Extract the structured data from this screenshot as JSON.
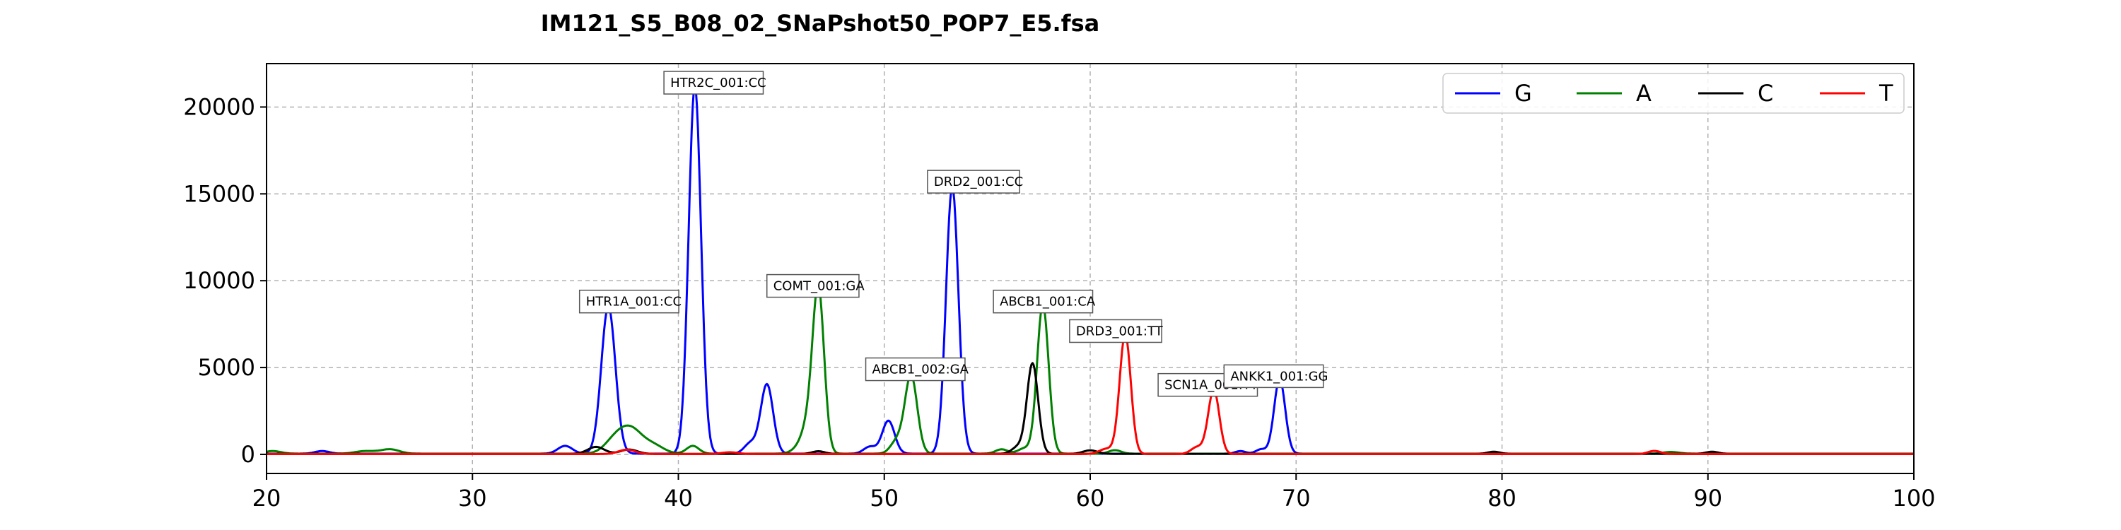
{
  "chart_data": {
    "type": "line",
    "title": "IM121_S5_B08_02_SNaPshot50_POP7_E5.fsa",
    "xlabel": "",
    "ylabel": "",
    "xlim": [
      20,
      100
    ],
    "ylim": [
      -1100,
      22500
    ],
    "xticks": [
      20,
      30,
      40,
      50,
      60,
      70,
      80,
      90,
      100
    ],
    "yticks": [
      0,
      5000,
      10000,
      15000,
      20000
    ],
    "grid": true,
    "legend_position": "top-right",
    "series": [
      {
        "name": "G",
        "color": "#0000ff",
        "baseline": 40,
        "peaks": [
          [
            22.7,
            150,
            0.35
          ],
          [
            34.5,
            450,
            0.35
          ],
          [
            36.6,
            8500,
            0.34
          ],
          [
            40.8,
            21200,
            0.3
          ],
          [
            43.5,
            600,
            0.3
          ],
          [
            44.3,
            4000,
            0.3
          ],
          [
            49.3,
            400,
            0.3
          ],
          [
            50.2,
            1900,
            0.3
          ],
          [
            53.3,
            15400,
            0.3
          ],
          [
            67.3,
            150,
            0.25
          ],
          [
            68.3,
            250,
            0.25
          ],
          [
            69.2,
            4300,
            0.27
          ]
        ]
      },
      {
        "name": "A",
        "color": "#008000",
        "baseline": 40,
        "peaks": [
          [
            20.3,
            150,
            0.4
          ],
          [
            24.8,
            150,
            0.5
          ],
          [
            26.0,
            250,
            0.45
          ],
          [
            36.9,
            700,
            0.5
          ],
          [
            37.7,
            1350,
            0.55
          ],
          [
            38.8,
            450,
            0.5
          ],
          [
            40.7,
            450,
            0.3
          ],
          [
            45.9,
            350,
            0.35
          ],
          [
            46.3,
            1300,
            0.3
          ],
          [
            46.8,
            9400,
            0.28
          ],
          [
            50.6,
            700,
            0.3
          ],
          [
            51.3,
            4500,
            0.3
          ],
          [
            55.7,
            250,
            0.3
          ],
          [
            56.8,
            300,
            0.3
          ],
          [
            57.7,
            8600,
            0.28
          ],
          [
            61.2,
            200,
            0.3
          ],
          [
            88.2,
            100,
            0.4
          ]
        ]
      },
      {
        "name": "C",
        "color": "#000000",
        "baseline": 30,
        "peaks": [
          [
            36.0,
            400,
            0.4
          ],
          [
            37.6,
            250,
            0.4
          ],
          [
            46.8,
            150,
            0.3
          ],
          [
            56.5,
            400,
            0.3
          ],
          [
            57.2,
            5200,
            0.27
          ],
          [
            60.0,
            200,
            0.35
          ],
          [
            79.6,
            120,
            0.3
          ],
          [
            90.2,
            120,
            0.3
          ]
        ]
      },
      {
        "name": "T",
        "color": "#ff0000",
        "baseline": 20,
        "peaks": [
          [
            37.5,
            250,
            0.4
          ],
          [
            42.5,
            100,
            0.4
          ],
          [
            60.8,
            300,
            0.35
          ],
          [
            61.7,
            6900,
            0.27
          ],
          [
            65.2,
            400,
            0.3
          ],
          [
            66.0,
            3700,
            0.27
          ],
          [
            87.4,
            180,
            0.3
          ]
        ]
      }
    ],
    "annotations": [
      {
        "text": "HTR1A_001:CC",
        "x": 35.2,
        "y": 8800
      },
      {
        "text": "HTR2C_001:CC",
        "x": 39.3,
        "y": 21400
      },
      {
        "text": "COMT_001:GA",
        "x": 44.3,
        "y": 9700
      },
      {
        "text": "ABCB1_002:GA",
        "x": 49.1,
        "y": 4900
      },
      {
        "text": "DRD2_001:CC",
        "x": 52.1,
        "y": 15700
      },
      {
        "text": "ABCB1_001:CA",
        "x": 55.3,
        "y": 8800
      },
      {
        "text": "DRD3_001:TT",
        "x": 59.0,
        "y": 7100
      },
      {
        "text": "SCN1A_001:TT",
        "x": 63.3,
        "y": 4000
      },
      {
        "text": "ANKK1_001:GG",
        "x": 66.5,
        "y": 4500
      }
    ]
  }
}
